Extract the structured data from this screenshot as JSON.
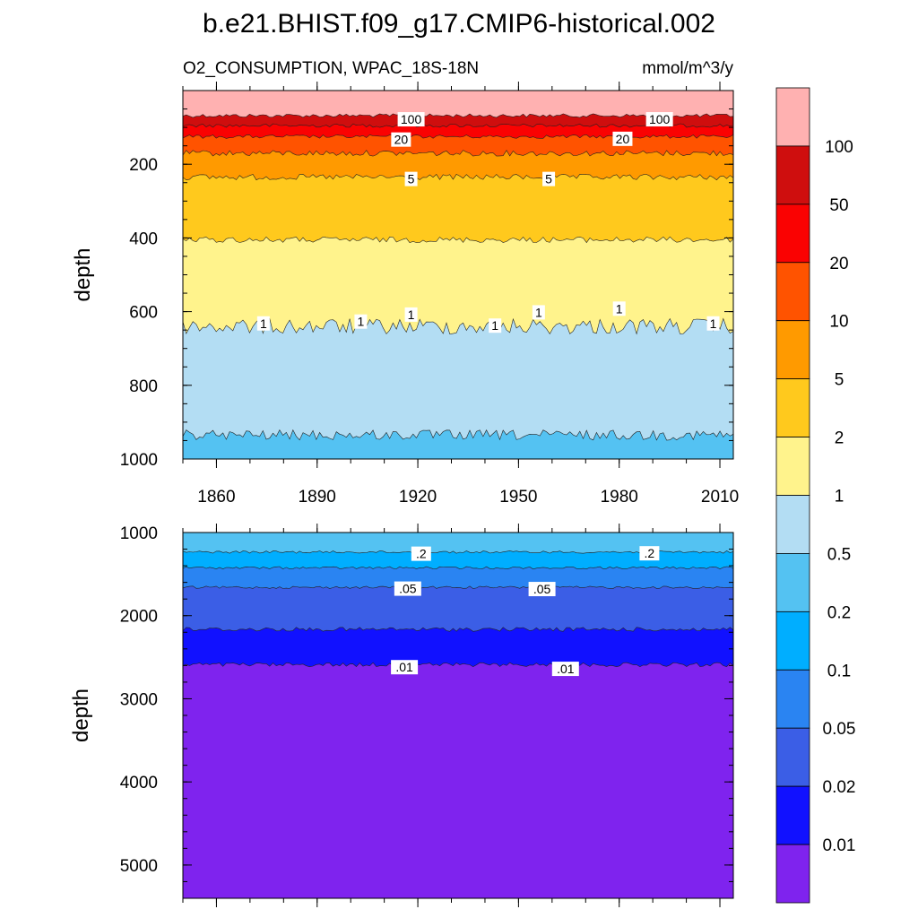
{
  "figure": {
    "title": "b.e21.BHIST.f09_g17.CMIP6-historical.002",
    "left_subtitle": "O2_CONSUMPTION, WPAC_18S-18N",
    "right_subtitle": "mmol/m^3/y"
  },
  "colorbar": {
    "labels": [
      "100",
      "50",
      "20",
      "10",
      "5",
      "2",
      "1",
      "0.5",
      "0.2",
      "0.1",
      "0.05",
      "0.02",
      "0.01"
    ],
    "colors": [
      "#ffb1b1",
      "#cf0e0e",
      "#fa0202",
      "#ff5300",
      "#ff9a00",
      "#ffc91d",
      "#fff38c",
      "#b3ddf3",
      "#54c2f2",
      "#00aeff",
      "#2a84f2",
      "#3b5ee6",
      "#1111ff",
      "#7f23ee"
    ]
  },
  "chart_data": [
    {
      "type": "heatmap",
      "plot_kind": "filled contour (depth vs time)",
      "xlabel": "",
      "ylabel": "depth",
      "x_range": [
        1850,
        2014
      ],
      "y_range": [
        0,
        1000
      ],
      "y_reversed": true,
      "x_ticks": [
        1860,
        1890,
        1920,
        1950,
        1980,
        2010
      ],
      "y_ticks": [
        200,
        400,
        600,
        800,
        1000
      ],
      "contour_levels": [
        0.01,
        0.02,
        0.05,
        0.1,
        0.2,
        0.5,
        1,
        2,
        5,
        10,
        20,
        50,
        100
      ],
      "level_depths": [
        {
          "level": 100,
          "depth": 68
        },
        {
          "level": 50,
          "depth": 95
        },
        {
          "level": 20,
          "depth": 125
        },
        {
          "level": 10,
          "depth": 170
        },
        {
          "level": 5,
          "depth": 235
        },
        {
          "level": 2,
          "depth": 405
        },
        {
          "level": 1,
          "depth": 640
        },
        {
          "level": 0.5,
          "depth": 935
        }
      ],
      "contour_labels": [
        {
          "text": "100",
          "x": 1918,
          "depth": 78
        },
        {
          "text": "100",
          "x": 1992,
          "depth": 78
        },
        {
          "text": "20",
          "x": 1915,
          "depth": 133
        },
        {
          "text": "20",
          "x": 1981,
          "depth": 131
        },
        {
          "text": "5",
          "x": 1918,
          "depth": 240
        },
        {
          "text": "5",
          "x": 1959,
          "depth": 240
        },
        {
          "text": "1",
          "x": 1874,
          "depth": 632
        },
        {
          "text": "1",
          "x": 1903,
          "depth": 627
        },
        {
          "text": "1",
          "x": 1918,
          "depth": 608
        },
        {
          "text": "1",
          "x": 1943,
          "depth": 638
        },
        {
          "text": "1",
          "x": 1956,
          "depth": 602
        },
        {
          "text": "1",
          "x": 1980,
          "depth": 592
        },
        {
          "text": "1",
          "x": 2008,
          "depth": 632
        }
      ]
    },
    {
      "type": "heatmap",
      "plot_kind": "filled contour (depth vs time)",
      "xlabel": "",
      "ylabel": "depth",
      "x_range": [
        1850,
        2014
      ],
      "y_range": [
        1000,
        5400
      ],
      "y_reversed": true,
      "y_ticks": [
        1000,
        2000,
        3000,
        4000,
        5000
      ],
      "contour_levels": [
        0.01,
        0.02,
        0.05,
        0.1,
        0.2,
        0.5,
        1,
        2,
        5,
        10,
        20,
        50,
        100
      ],
      "level_depths": [
        {
          "level": 0.2,
          "depth": 1235
        },
        {
          "level": 0.1,
          "depth": 1425
        },
        {
          "level": 0.05,
          "depth": 1660
        },
        {
          "level": 0.02,
          "depth": 2165
        },
        {
          "level": 0.01,
          "depth": 2590
        }
      ],
      "contour_labels": [
        {
          "text": ".2",
          "x": 1921,
          "depth": 1255
        },
        {
          "text": ".2",
          "x": 1989,
          "depth": 1250
        },
        {
          "text": ".05",
          "x": 1917,
          "depth": 1675
        },
        {
          "text": ".05",
          "x": 1957,
          "depth": 1680
        },
        {
          "text": ".01",
          "x": 1916,
          "depth": 2620
        },
        {
          "text": ".01",
          "x": 1964,
          "depth": 2640
        }
      ]
    }
  ]
}
